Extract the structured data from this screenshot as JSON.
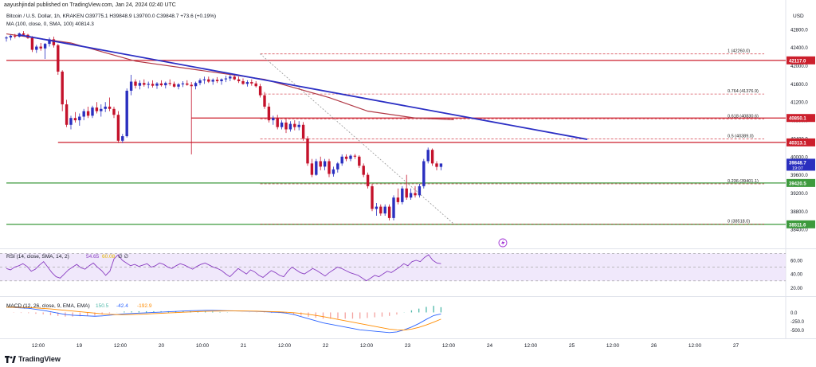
{
  "header": {
    "published": "aayushjindal published on TradingView.com, Jan 24, 2024 02:40 UTC",
    "symbol": "Bitcoin / U.S. Dollar, 1h, KRAKEN",
    "ohlc": "O39775.1 H39848.9 L39700.0 C39848.7 +73.6 (+0.19%)",
    "ma_legend": "MA (100, close, 0, SMA, 100)",
    "ma_value": "40814.3",
    "rsi_legend": "RSI (14, close, SMA, 14, 2)",
    "rsi_value": "54.65",
    "rsi_value2": "60.08",
    "rsi_extra": "∅ ∅",
    "macd_legend": "MACD (12, 26, close, 9, EMA, EMA)",
    "macd_values": [
      "150.5",
      "-42.4",
      "-192.9"
    ]
  },
  "brand": "TradingView",
  "currency": "USD",
  "colors": {
    "up": "#2a2fbf",
    "down": "#c4122b",
    "trendline": "#2b2fc4",
    "resistance": "#cc1f2c",
    "support": "#3d9a3d",
    "ma": "#b23a47",
    "fib": "#cc1f2c",
    "rsi": "#8a3ec2",
    "macd": "#2962ff",
    "signal": "#ff8c00"
  },
  "chart_data": {
    "type": "candlestick",
    "title": "Bitcoin / U.S. Dollar, 1h, KRAKEN",
    "y_ticks": [
      38400,
      38800,
      39200,
      39600,
      40000,
      40400,
      40800,
      41200,
      41600,
      42000,
      42400,
      42800
    ],
    "x_ticks": [
      "12:00",
      "19",
      "12:00",
      "20",
      "10:00",
      "21",
      "12:00",
      "22",
      "12:00",
      "23",
      "12:00",
      "24",
      "12:00",
      "25",
      "12:00",
      "26",
      "12:00",
      "27"
    ],
    "ylim": [
      38000,
      43200
    ],
    "candles": [
      {
        "o": 42600,
        "h": 42650,
        "l": 42530,
        "c": 42620
      },
      {
        "o": 42620,
        "h": 42680,
        "l": 42560,
        "c": 42660
      },
      {
        "o": 42660,
        "h": 42700,
        "l": 42600,
        "c": 42640
      },
      {
        "o": 42640,
        "h": 42730,
        "l": 42620,
        "c": 42710
      },
      {
        "o": 42710,
        "h": 42760,
        "l": 42650,
        "c": 42680
      },
      {
        "o": 42680,
        "h": 42700,
        "l": 42590,
        "c": 42610
      },
      {
        "o": 42610,
        "h": 42650,
        "l": 42300,
        "c": 42350
      },
      {
        "o": 42350,
        "h": 42460,
        "l": 42280,
        "c": 42420
      },
      {
        "o": 42420,
        "h": 42500,
        "l": 42330,
        "c": 42380
      },
      {
        "o": 42380,
        "h": 42500,
        "l": 42150,
        "c": 42480
      },
      {
        "o": 42480,
        "h": 42620,
        "l": 42420,
        "c": 42580
      },
      {
        "o": 42580,
        "h": 42640,
        "l": 42400,
        "c": 42450
      },
      {
        "o": 42450,
        "h": 42480,
        "l": 41800,
        "c": 41870
      },
      {
        "o": 41870,
        "h": 41900,
        "l": 41000,
        "c": 41150
      },
      {
        "o": 41150,
        "h": 41250,
        "l": 40650,
        "c": 40700
      },
      {
        "o": 40700,
        "h": 40900,
        "l": 40600,
        "c": 40850
      },
      {
        "o": 40850,
        "h": 40980,
        "l": 40750,
        "c": 40800
      },
      {
        "o": 40800,
        "h": 40950,
        "l": 40680,
        "c": 40880
      },
      {
        "o": 40880,
        "h": 41050,
        "l": 40800,
        "c": 41000
      },
      {
        "o": 41000,
        "h": 41100,
        "l": 40850,
        "c": 40900
      },
      {
        "o": 40900,
        "h": 41120,
        "l": 40850,
        "c": 41080
      },
      {
        "o": 41080,
        "h": 41200,
        "l": 40950,
        "c": 41000
      },
      {
        "o": 41000,
        "h": 41150,
        "l": 40880,
        "c": 41050
      },
      {
        "o": 41050,
        "h": 41200,
        "l": 40980,
        "c": 41100
      },
      {
        "o": 41100,
        "h": 41300,
        "l": 41000,
        "c": 41050
      },
      {
        "o": 41050,
        "h": 41100,
        "l": 40850,
        "c": 40920
      },
      {
        "o": 40920,
        "h": 41000,
        "l": 40300,
        "c": 40350
      },
      {
        "o": 40350,
        "h": 40500,
        "l": 40300,
        "c": 40450
      },
      {
        "o": 40450,
        "h": 41500,
        "l": 40420,
        "c": 41450
      },
      {
        "o": 41450,
        "h": 41800,
        "l": 41350,
        "c": 41650
      },
      {
        "o": 41650,
        "h": 41700,
        "l": 41500,
        "c": 41560
      },
      {
        "o": 41560,
        "h": 41680,
        "l": 41480,
        "c": 41620
      },
      {
        "o": 41620,
        "h": 41700,
        "l": 41540,
        "c": 41580
      },
      {
        "o": 41580,
        "h": 41650,
        "l": 41500,
        "c": 41600
      },
      {
        "o": 41600,
        "h": 41680,
        "l": 41520,
        "c": 41560
      },
      {
        "o": 41560,
        "h": 41640,
        "l": 41490,
        "c": 41610
      },
      {
        "o": 41610,
        "h": 41680,
        "l": 41540,
        "c": 41570
      },
      {
        "o": 41570,
        "h": 41650,
        "l": 41500,
        "c": 41620
      },
      {
        "o": 41620,
        "h": 41700,
        "l": 41560,
        "c": 41600
      },
      {
        "o": 41600,
        "h": 41650,
        "l": 41520,
        "c": 41540
      },
      {
        "o": 41540,
        "h": 41620,
        "l": 41480,
        "c": 41590
      },
      {
        "o": 41590,
        "h": 41660,
        "l": 41530,
        "c": 41610
      },
      {
        "o": 41610,
        "h": 41680,
        "l": 41560,
        "c": 41580
      },
      {
        "o": 41580,
        "h": 41640,
        "l": 40050,
        "c": 41550
      },
      {
        "o": 41550,
        "h": 41650,
        "l": 41480,
        "c": 41620
      },
      {
        "o": 41620,
        "h": 41720,
        "l": 41570,
        "c": 41680
      },
      {
        "o": 41680,
        "h": 41760,
        "l": 41600,
        "c": 41700
      },
      {
        "o": 41700,
        "h": 41760,
        "l": 41620,
        "c": 41650
      },
      {
        "o": 41650,
        "h": 41720,
        "l": 41580,
        "c": 41690
      },
      {
        "o": 41690,
        "h": 41750,
        "l": 41620,
        "c": 41660
      },
      {
        "o": 41660,
        "h": 41720,
        "l": 41580,
        "c": 41700
      },
      {
        "o": 41700,
        "h": 41780,
        "l": 41640,
        "c": 41720
      },
      {
        "o": 41720,
        "h": 41800,
        "l": 41660,
        "c": 41760
      },
      {
        "o": 41760,
        "h": 41820,
        "l": 41680,
        "c": 41700
      },
      {
        "o": 41700,
        "h": 41760,
        "l": 41620,
        "c": 41660
      },
      {
        "o": 41660,
        "h": 41720,
        "l": 41580,
        "c": 41600
      },
      {
        "o": 41600,
        "h": 41680,
        "l": 41540,
        "c": 41640
      },
      {
        "o": 41640,
        "h": 41700,
        "l": 41560,
        "c": 41610
      },
      {
        "o": 41610,
        "h": 41660,
        "l": 41520,
        "c": 41550
      },
      {
        "o": 41550,
        "h": 41600,
        "l": 41300,
        "c": 41350
      },
      {
        "o": 41350,
        "h": 41420,
        "l": 41050,
        "c": 41100
      },
      {
        "o": 41100,
        "h": 41180,
        "l": 40750,
        "c": 40800
      },
      {
        "o": 40800,
        "h": 40900,
        "l": 40700,
        "c": 40850
      },
      {
        "o": 40850,
        "h": 40920,
        "l": 40600,
        "c": 40650
      },
      {
        "o": 40650,
        "h": 40800,
        "l": 40600,
        "c": 40750
      },
      {
        "o": 40750,
        "h": 40850,
        "l": 40520,
        "c": 40600
      },
      {
        "o": 40600,
        "h": 40780,
        "l": 40550,
        "c": 40720
      },
      {
        "o": 40720,
        "h": 40800,
        "l": 40580,
        "c": 40650
      },
      {
        "o": 40650,
        "h": 40780,
        "l": 40580,
        "c": 40700
      },
      {
        "o": 40700,
        "h": 40760,
        "l": 40350,
        "c": 40400
      },
      {
        "o": 40400,
        "h": 40450,
        "l": 39800,
        "c": 39850
      },
      {
        "o": 39850,
        "h": 39950,
        "l": 39550,
        "c": 39600
      },
      {
        "o": 39600,
        "h": 39950,
        "l": 39580,
        "c": 39900
      },
      {
        "o": 39900,
        "h": 40000,
        "l": 39700,
        "c": 39780
      },
      {
        "o": 39780,
        "h": 39950,
        "l": 39700,
        "c": 39900
      },
      {
        "o": 39900,
        "h": 39950,
        "l": 39550,
        "c": 39620
      },
      {
        "o": 39620,
        "h": 39780,
        "l": 39560,
        "c": 39720
      },
      {
        "o": 39720,
        "h": 39880,
        "l": 39650,
        "c": 39850
      },
      {
        "o": 39850,
        "h": 40050,
        "l": 39800,
        "c": 40000
      },
      {
        "o": 40000,
        "h": 40050,
        "l": 39900,
        "c": 39950
      },
      {
        "o": 39950,
        "h": 40050,
        "l": 39900,
        "c": 40020
      },
      {
        "o": 40020,
        "h": 40060,
        "l": 39950,
        "c": 40000
      },
      {
        "o": 40000,
        "h": 40030,
        "l": 39750,
        "c": 39800
      },
      {
        "o": 39800,
        "h": 39850,
        "l": 39550,
        "c": 39600
      },
      {
        "o": 39600,
        "h": 39650,
        "l": 39300,
        "c": 39350
      },
      {
        "o": 39350,
        "h": 39400,
        "l": 38800,
        "c": 38850
      },
      {
        "o": 38850,
        "h": 38980,
        "l": 38700,
        "c": 38900
      },
      {
        "o": 38900,
        "h": 38950,
        "l": 38700,
        "c": 38750
      },
      {
        "o": 38750,
        "h": 38950,
        "l": 38700,
        "c": 38900
      },
      {
        "o": 38900,
        "h": 38950,
        "l": 38600,
        "c": 38650
      },
      {
        "o": 38650,
        "h": 39150,
        "l": 38600,
        "c": 39100
      },
      {
        "o": 39100,
        "h": 39300,
        "l": 38950,
        "c": 39000
      },
      {
        "o": 39000,
        "h": 39350,
        "l": 38950,
        "c": 39300
      },
      {
        "o": 39300,
        "h": 39600,
        "l": 39050,
        "c": 39100
      },
      {
        "o": 39100,
        "h": 39300,
        "l": 39050,
        "c": 39200
      },
      {
        "o": 39200,
        "h": 39350,
        "l": 39100,
        "c": 39150
      },
      {
        "o": 39150,
        "h": 39400,
        "l": 39100,
        "c": 39350
      },
      {
        "o": 39350,
        "h": 39950,
        "l": 39300,
        "c": 39900
      },
      {
        "o": 39900,
        "h": 40200,
        "l": 39850,
        "c": 40150
      },
      {
        "o": 40150,
        "h": 40180,
        "l": 39800,
        "c": 39850
      },
      {
        "o": 39850,
        "h": 39900,
        "l": 39700,
        "c": 39775
      },
      {
        "o": 39775,
        "h": 39849,
        "l": 39700,
        "c": 39849
      }
    ],
    "ma100": [
      [
        0,
        42700
      ],
      [
        15,
        42500
      ],
      [
        30,
        42100
      ],
      [
        45,
        41900
      ],
      [
        60,
        41700
      ],
      [
        75,
        41300
      ],
      [
        84,
        41000
      ],
      [
        95,
        40850
      ],
      [
        104,
        40814
      ]
    ],
    "trendline": {
      "from": [
        3,
        42680
      ],
      "to": [
        135,
        40380
      ]
    },
    "horizontal_levels": [
      {
        "price": 42117.0,
        "label": "42117.0",
        "color": "resistance",
        "from": 0
      },
      {
        "price": 40850.1,
        "label": "40850.1",
        "color": "resistance",
        "from": 43
      },
      {
        "price": 40313.1,
        "label": "40313.1",
        "color": "resistance",
        "from": 12
      },
      {
        "price": 39420.5,
        "label": "39420.5",
        "color": "support",
        "from": 0
      },
      {
        "price": 38511.6,
        "label": "38511.6",
        "color": "support",
        "from": 0
      }
    ],
    "fib": {
      "from_index": 59,
      "to_index": 166,
      "levels": [
        {
          "ratio": "1",
          "price": 42260.0,
          "label": "1 (42260.0)"
        },
        {
          "ratio": "0.764",
          "price": 41376.9,
          "label": "0.764 (41376.9)"
        },
        {
          "ratio": "0.618",
          "price": 40830.6,
          "label": "0.618 (40830.6)"
        },
        {
          "ratio": "0.5",
          "price": 40389.0,
          "label": "0.5 (40389.0)"
        },
        {
          "ratio": "0.236",
          "price": 39401.1,
          "label": "0.236 (39401.1)"
        },
        {
          "ratio": "0",
          "price": 38518.0,
          "label": "0 (38518.0)"
        }
      ]
    },
    "last_price": {
      "value": "39848.7",
      "countdown": "19:07"
    },
    "rsi": {
      "ticks": [
        20,
        40,
        60
      ],
      "band": [
        30,
        70
      ],
      "values": [
        48,
        46,
        50,
        52,
        55,
        51,
        44,
        47,
        53,
        58,
        50,
        42,
        36,
        34,
        40,
        46,
        50,
        54,
        49,
        47,
        52,
        56,
        50,
        45,
        38,
        44,
        62,
        68,
        60,
        56,
        52,
        54,
        51,
        53,
        55,
        50,
        52,
        56,
        54,
        50,
        48,
        52,
        55,
        53,
        50,
        47,
        51,
        54,
        56,
        53,
        50,
        48,
        45,
        40,
        36,
        42,
        48,
        44,
        40,
        46,
        43,
        38,
        35,
        40,
        45,
        42,
        38,
        36,
        44,
        50,
        46,
        42,
        40,
        44,
        48,
        45,
        41,
        37,
        42,
        46,
        50,
        48,
        45,
        42,
        40,
        38,
        34,
        30,
        34,
        38,
        36,
        40,
        44,
        42,
        46,
        50,
        55,
        52,
        58,
        60,
        58,
        64,
        68,
        60,
        56,
        55
      ]
    },
    "macd": {
      "ticks": [
        0,
        -250,
        -500
      ],
      "ylim": [
        -700,
        400
      ],
      "macd": [
        150,
        140,
        130,
        120,
        90,
        60,
        20,
        -20,
        -60,
        -80,
        -90,
        -100,
        -110,
        -100,
        -80,
        -60,
        -40,
        -30,
        -20,
        -10,
        0,
        10,
        20,
        30,
        40,
        50,
        55,
        60,
        60,
        55,
        50,
        45,
        40,
        35,
        30,
        20,
        10,
        0,
        -20,
        -60,
        -120,
        -180,
        -240,
        -300,
        -340,
        -380,
        -420,
        -460,
        -500,
        -520,
        -540,
        -560,
        -580,
        -560,
        -500,
        -420,
        -320,
        -200,
        -90,
        -42
      ],
      "signal": [
        150,
        148,
        145,
        140,
        130,
        115,
        100,
        80,
        60,
        40,
        20,
        0,
        -20,
        -40,
        -55,
        -62,
        -65,
        -60,
        -55,
        -45,
        -35,
        -25,
        -15,
        -5,
        5,
        15,
        25,
        32,
        38,
        42,
        44,
        44,
        42,
        40,
        36,
        30,
        24,
        16,
        6,
        -8,
        -28,
        -55,
        -85,
        -120,
        -160,
        -200,
        -240,
        -280,
        -320,
        -360,
        -400,
        -440,
        -480,
        -500,
        -505,
        -480,
        -430,
        -360,
        -280,
        -193
      ]
    }
  }
}
